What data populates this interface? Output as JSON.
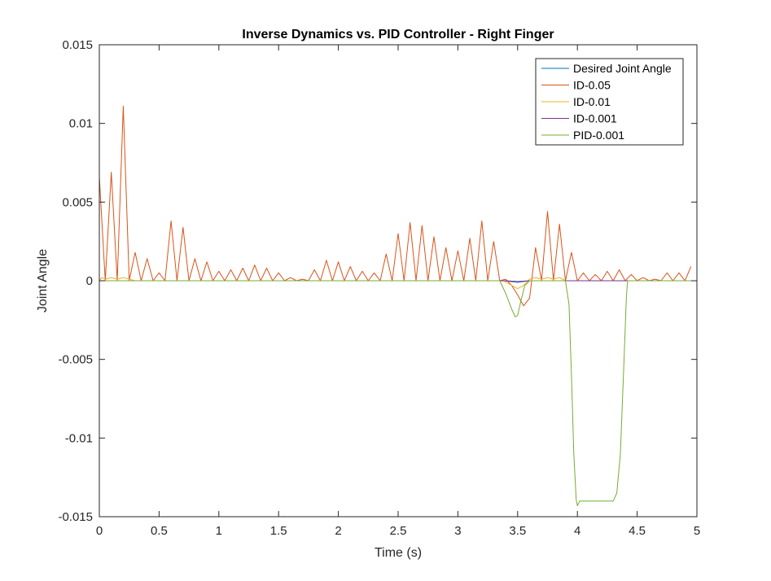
{
  "chart_data": {
    "type": "line",
    "title": "Inverse Dynamics vs. PID Controller - Right Finger",
    "xlabel": "Time (s)",
    "ylabel": "Joint Angle",
    "xlim": [
      0,
      5
    ],
    "ylim": [
      -0.015,
      0.015
    ],
    "x_ticks": [
      "0",
      "0.5",
      "1",
      "1.5",
      "2",
      "2.5",
      "3",
      "3.5",
      "4",
      "4.5",
      "5"
    ],
    "y_ticks": [
      "0.015",
      "0.01",
      "0.005",
      "0",
      "-0.005",
      "-0.01",
      "-0.015"
    ],
    "legend_position": "top-right",
    "grid": false,
    "series": [
      {
        "name": "Desired Joint Angle",
        "color": "#0072BD",
        "points": [
          [
            0,
            0
          ],
          [
            3.38,
            0
          ],
          [
            3.5,
            -0.0001
          ],
          [
            3.6,
            0
          ],
          [
            5,
            0
          ]
        ]
      },
      {
        "name": "ID-0.05",
        "color": "#D95319",
        "points": [
          [
            0,
            0.0066
          ],
          [
            0.05,
            0
          ],
          [
            0.1,
            0.0069
          ],
          [
            0.15,
            0
          ],
          [
            0.2,
            0.0111
          ],
          [
            0.25,
            0
          ],
          [
            0.3,
            0.0018
          ],
          [
            0.35,
            0
          ],
          [
            0.4,
            0.0014
          ],
          [
            0.45,
            0
          ],
          [
            0.5,
            0.0005
          ],
          [
            0.55,
            0
          ],
          [
            0.6,
            0.0038
          ],
          [
            0.65,
            0
          ],
          [
            0.7,
            0.0034
          ],
          [
            0.75,
            0
          ],
          [
            0.8,
            0.0014
          ],
          [
            0.85,
            0
          ],
          [
            0.9,
            0.0012
          ],
          [
            0.95,
            0
          ],
          [
            1.0,
            0.0006
          ],
          [
            1.05,
            0
          ],
          [
            1.1,
            0.0007
          ],
          [
            1.15,
            0
          ],
          [
            1.2,
            0.0008
          ],
          [
            1.25,
            0
          ],
          [
            1.3,
            0.001
          ],
          [
            1.35,
            0
          ],
          [
            1.4,
            0.0008
          ],
          [
            1.45,
            0
          ],
          [
            1.5,
            0.0005
          ],
          [
            1.55,
            0
          ],
          [
            1.6,
            0.0002
          ],
          [
            1.65,
            0
          ],
          [
            1.7,
            0.0001
          ],
          [
            1.75,
            0
          ],
          [
            1.8,
            0.0007
          ],
          [
            1.85,
            0
          ],
          [
            1.9,
            0.0013
          ],
          [
            1.95,
            0
          ],
          [
            2.0,
            0.0012
          ],
          [
            2.05,
            0
          ],
          [
            2.1,
            0.0009
          ],
          [
            2.15,
            0
          ],
          [
            2.2,
            0.0006
          ],
          [
            2.25,
            0
          ],
          [
            2.3,
            0.0005
          ],
          [
            2.35,
            0
          ],
          [
            2.4,
            0.0017
          ],
          [
            2.45,
            0
          ],
          [
            2.5,
            0.003
          ],
          [
            2.55,
            0
          ],
          [
            2.6,
            0.0037
          ],
          [
            2.65,
            0
          ],
          [
            2.7,
            0.0035
          ],
          [
            2.75,
            0
          ],
          [
            2.8,
            0.0028
          ],
          [
            2.85,
            0
          ],
          [
            2.9,
            0.0021
          ],
          [
            2.95,
            0
          ],
          [
            3.0,
            0.0019
          ],
          [
            3.05,
            0
          ],
          [
            3.1,
            0.0027
          ],
          [
            3.15,
            0
          ],
          [
            3.2,
            0.0038
          ],
          [
            3.25,
            0
          ],
          [
            3.3,
            0.0025
          ],
          [
            3.35,
            0
          ],
          [
            3.4,
            0.0001
          ],
          [
            3.45,
            -0.0003
          ],
          [
            3.5,
            -0.0009
          ],
          [
            3.55,
            -0.0016
          ],
          [
            3.6,
            -0.0011
          ],
          [
            3.65,
            0.0021
          ],
          [
            3.7,
            0
          ],
          [
            3.75,
            0.0044
          ],
          [
            3.8,
            0
          ],
          [
            3.85,
            0.0036
          ],
          [
            3.9,
            0
          ],
          [
            3.95,
            0.0018
          ],
          [
            4.0,
            0
          ],
          [
            4.05,
            0.0005
          ],
          [
            4.1,
            0
          ],
          [
            4.15,
            0.0004
          ],
          [
            4.2,
            0
          ],
          [
            4.25,
            0.0006
          ],
          [
            4.3,
            0
          ],
          [
            4.35,
            0.0007
          ],
          [
            4.4,
            0
          ],
          [
            4.45,
            0.0004
          ],
          [
            4.5,
            0
          ],
          [
            4.55,
            0.0002
          ],
          [
            4.6,
            0
          ],
          [
            4.65,
            0.0001
          ],
          [
            4.7,
            0
          ],
          [
            4.75,
            0.0005
          ],
          [
            4.8,
            0
          ],
          [
            4.85,
            0.0005
          ],
          [
            4.9,
            0
          ],
          [
            4.95,
            0.0009
          ]
        ]
      },
      {
        "name": "ID-0.01",
        "color": "#EDB120",
        "points": [
          [
            0,
            0
          ],
          [
            0.02,
            0.0002
          ],
          [
            0.05,
            0.0001
          ],
          [
            0.1,
            0.0002
          ],
          [
            0.15,
            0.0001
          ],
          [
            0.2,
            0.0002
          ],
          [
            0.3,
            0
          ],
          [
            3.38,
            0
          ],
          [
            3.45,
            -0.0003
          ],
          [
            3.5,
            -0.0005
          ],
          [
            3.55,
            -0.0003
          ],
          [
            3.6,
            0.0001
          ],
          [
            3.65,
            0.0002
          ],
          [
            3.7,
            0.0001
          ],
          [
            3.75,
            0.0002
          ],
          [
            3.8,
            0.0001
          ],
          [
            3.85,
            0.0002
          ],
          [
            3.9,
            0
          ],
          [
            5,
            0
          ]
        ]
      },
      {
        "name": "ID-0.001",
        "color": "#7E2F8E",
        "points": [
          [
            0,
            0
          ],
          [
            3.4,
            0
          ],
          [
            3.5,
            -5e-05
          ],
          [
            3.6,
            0
          ],
          [
            5,
            0
          ]
        ]
      },
      {
        "name": "PID-0.001",
        "color": "#77AC30",
        "points": [
          [
            0,
            0
          ],
          [
            3.35,
            0
          ],
          [
            3.4,
            -0.0008
          ],
          [
            3.45,
            -0.0018
          ],
          [
            3.48,
            -0.0023
          ],
          [
            3.5,
            -0.0022
          ],
          [
            3.53,
            -0.0012
          ],
          [
            3.56,
            -0.0003
          ],
          [
            3.6,
            0
          ],
          [
            3.9,
            0
          ],
          [
            3.93,
            -0.0015
          ],
          [
            3.95,
            -0.006
          ],
          [
            3.97,
            -0.011
          ],
          [
            3.99,
            -0.0139
          ],
          [
            4.0,
            -0.0143
          ],
          [
            4.02,
            -0.014
          ],
          [
            4.3,
            -0.014
          ],
          [
            4.33,
            -0.0135
          ],
          [
            4.36,
            -0.011
          ],
          [
            4.39,
            -0.005
          ],
          [
            4.41,
            -0.001
          ],
          [
            4.42,
            0
          ],
          [
            5,
            0
          ]
        ]
      }
    ]
  }
}
